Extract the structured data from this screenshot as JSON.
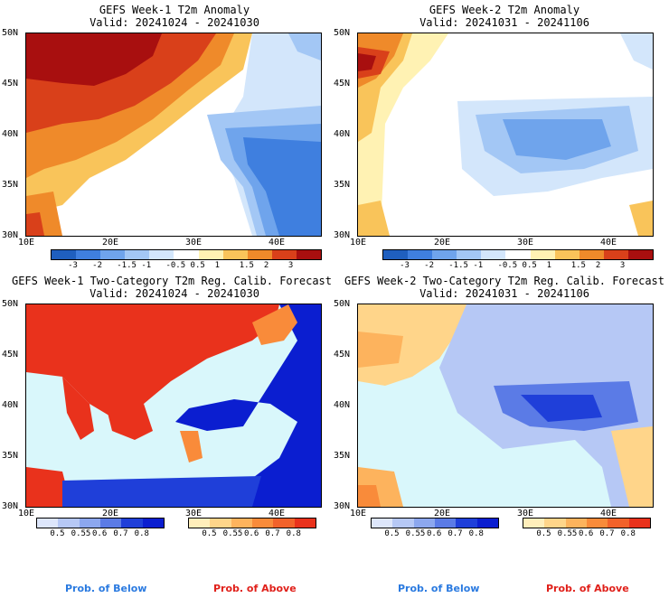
{
  "panels": [
    {
      "title": "GEFS Week-1 T2m Anomaly",
      "valid": "Valid: 20241024 - 20241030"
    },
    {
      "title": "GEFS Week-2 T2m Anomaly",
      "valid": "Valid: 20241031 - 20241106"
    },
    {
      "title": "GEFS Week-1 Two-Category T2m Reg. Calib. Forecast",
      "valid": "Valid: 20241024 - 20241030"
    },
    {
      "title": "GEFS Week-2 Two-Category T2m Reg. Calib. Forecast",
      "valid": "Valid: 20241031 - 20241106"
    }
  ],
  "lat_ticks": [
    "50N",
    "45N",
    "40N",
    "35N",
    "30N"
  ],
  "lon_ticks": [
    "10E",
    "20E",
    "30E",
    "40E"
  ],
  "anomaly_scale": {
    "labels": [
      "-3",
      "-2",
      "-1.5",
      "-1",
      "-0.5",
      "0.5",
      "1",
      "1.5",
      "2",
      "3"
    ],
    "colors": [
      "#1f5fbf",
      "#3f7fdf",
      "#6fa4ec",
      "#a3c7f5",
      "#d3e6fb",
      "#ffffff",
      "#fff2b3",
      "#f9c45a",
      "#ef8a2a",
      "#d9401a",
      "#a80f0f"
    ]
  },
  "prob_below": {
    "labels": [
      "0.5",
      "0.55",
      "0.6",
      "0.7",
      "0.8"
    ],
    "colors": [
      "#dde6fb",
      "#b6c8f5",
      "#8ca7ee",
      "#5b7be6",
      "#1f3fd9",
      "#0b1ed0"
    ]
  },
  "prob_above": {
    "labels": [
      "0.5",
      "0.55",
      "0.6",
      "0.7",
      "0.8"
    ],
    "colors": [
      "#ffeebb",
      "#ffd58a",
      "#fdb35d",
      "#f98b3a",
      "#f2622a",
      "#e9321c"
    ]
  },
  "legend_below": "Prob. of Below",
  "legend_above": "Prob. of Above",
  "colors": {
    "sea_light": "#d9f7fb",
    "land_outline": "#000000",
    "below_text": "#2a7ae0",
    "above_text": "#e0201a"
  }
}
